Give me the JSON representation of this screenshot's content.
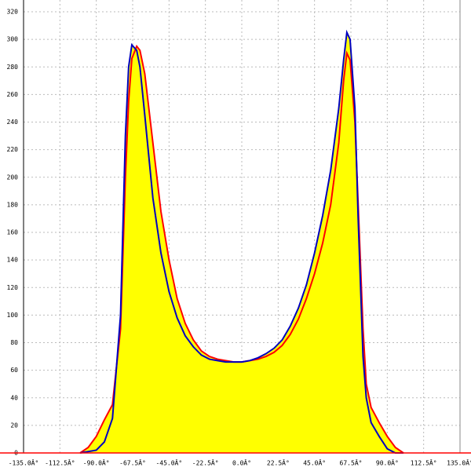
{
  "chart_data": {
    "type": "area",
    "x": [
      -100,
      -95,
      -90,
      -85,
      -80,
      -75,
      -72,
      -70,
      -68,
      -65,
      -63,
      -60,
      -55,
      -50,
      -45,
      -40,
      -35,
      -30,
      -25,
      -20,
      -15,
      -10,
      -5,
      0,
      5,
      10,
      15,
      20,
      25,
      30,
      35,
      40,
      45,
      50,
      55,
      60,
      63,
      65,
      67,
      70,
      72,
      75,
      77,
      80,
      85,
      90,
      95,
      100
    ],
    "series": [
      {
        "color": "#ff0000",
        "values": [
          0,
          4,
          12,
          24,
          35,
          90,
          200,
          255,
          286,
          295,
          292,
          275,
          225,
          175,
          140,
          112,
          94,
          82,
          74,
          70,
          68,
          67,
          66,
          66,
          67,
          68,
          70,
          73,
          78,
          86,
          97,
          112,
          130,
          152,
          180,
          225,
          270,
          290,
          285,
          240,
          180,
          90,
          50,
          33,
          22,
          12,
          4,
          0
        ]
      },
      {
        "color": "#0000c0",
        "values": [
          0,
          1,
          2,
          8,
          25,
          100,
          230,
          280,
          296,
          292,
          280,
          245,
          185,
          145,
          117,
          98,
          85,
          77,
          71,
          68,
          67,
          66,
          66,
          66,
          67,
          69,
          72,
          76,
          82,
          92,
          105,
          122,
          145,
          172,
          205,
          250,
          285,
          305,
          300,
          250,
          170,
          70,
          40,
          22,
          12,
          3,
          0,
          0
        ]
      }
    ],
    "fill": "#ffff00",
    "xlim": [
      -135,
      135
    ],
    "xticks": [
      {
        "value": -135,
        "label": "-135.0Â°"
      },
      {
        "value": -112.5,
        "label": "-112.5Â°"
      },
      {
        "value": -90,
        "label": "-90.0Â°"
      },
      {
        "value": -67.5,
        "label": "-67.5Â°"
      },
      {
        "value": -45,
        "label": "-45.0Â°"
      },
      {
        "value": -22.5,
        "label": "-22.5Â°"
      },
      {
        "value": 0,
        "label": "0.0Â°"
      },
      {
        "value": 22.5,
        "label": "22.5Â°"
      },
      {
        "value": 45,
        "label": "45.0Â°"
      },
      {
        "value": 67.5,
        "label": "67.5Â°"
      },
      {
        "value": 90,
        "label": "90.0Â°"
      },
      {
        "value": 112.5,
        "label": "112.5Â°"
      },
      {
        "value": 135,
        "label": "135.0Â°"
      }
    ],
    "ylim": [
      0,
      320
    ],
    "yticks": [
      0,
      20,
      40,
      60,
      80,
      100,
      120,
      140,
      160,
      180,
      200,
      220,
      240,
      260,
      280,
      300,
      320
    ],
    "grid": true
  }
}
